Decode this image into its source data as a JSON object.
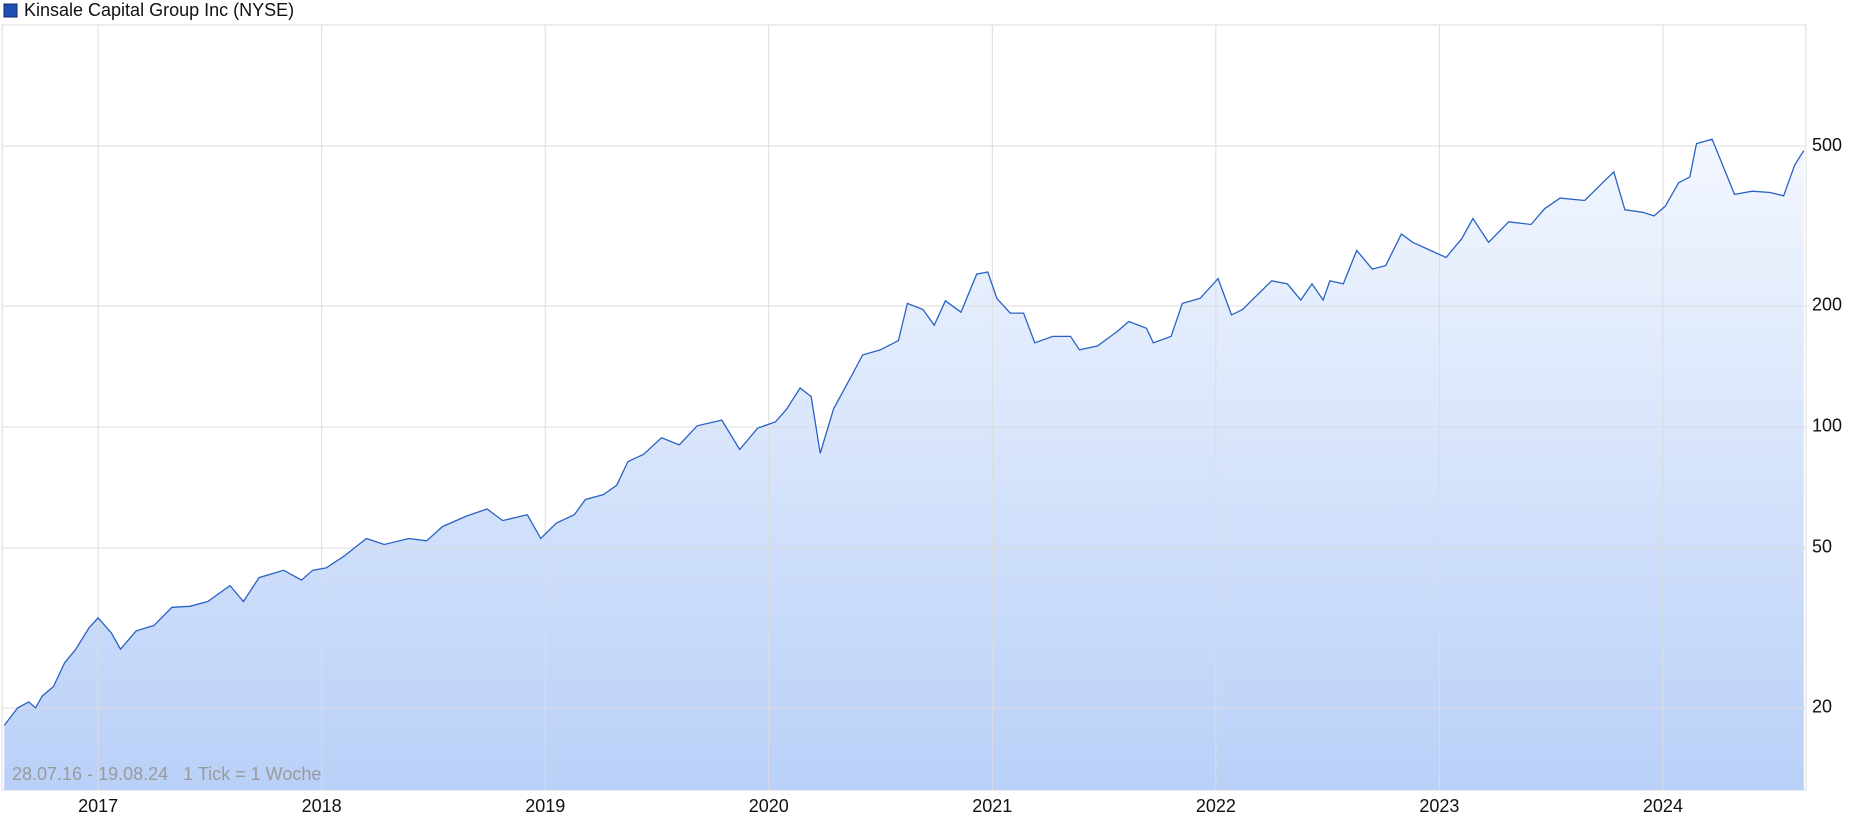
{
  "chart_data": {
    "type": "line",
    "title": "Kinsale Capital Group Inc (NYSE)",
    "note": "28.07.16 - 19.08.24   1 Tick = 1 Woche",
    "log_scale": true,
    "grid": true,
    "xlim": [
      2016.57,
      2024.64
    ],
    "xticks": [
      2017,
      2018,
      2019,
      2020,
      2021,
      2022,
      2023,
      2024
    ],
    "ylim": [
      12.5,
      1000
    ],
    "yticks": [
      20,
      50,
      100,
      200,
      500
    ],
    "x": [
      2016.58,
      2016.64,
      2016.69,
      2016.72,
      2016.75,
      2016.8,
      2016.85,
      2016.9,
      2016.96,
      2017.0,
      2017.06,
      2017.1,
      2017.17,
      2017.25,
      2017.33,
      2017.41,
      2017.49,
      2017.59,
      2017.65,
      2017.72,
      2017.83,
      2017.91,
      2017.96,
      2018.02,
      2018.1,
      2018.2,
      2018.28,
      2018.39,
      2018.47,
      2018.54,
      2018.65,
      2018.74,
      2018.81,
      2018.92,
      2018.98,
      2019.05,
      2019.13,
      2019.18,
      2019.26,
      2019.32,
      2019.37,
      2019.44,
      2019.52,
      2019.6,
      2019.68,
      2019.79,
      2019.87,
      2019.95,
      2020.03,
      2020.08,
      2020.14,
      2020.19,
      2020.23,
      2020.29,
      2020.37,
      2020.42,
      2020.5,
      2020.58,
      2020.62,
      2020.69,
      2020.74,
      2020.79,
      2020.86,
      2020.93,
      2020.98,
      2021.02,
      2021.08,
      2021.14,
      2021.19,
      2021.27,
      2021.35,
      2021.39,
      2021.47,
      2021.56,
      2021.61,
      2021.69,
      2021.72,
      2021.8,
      2021.85,
      2021.93,
      2022.01,
      2022.07,
      2022.12,
      2022.17,
      2022.25,
      2022.32,
      2022.38,
      2022.43,
      2022.48,
      2022.51,
      2022.57,
      2022.63,
      2022.7,
      2022.76,
      2022.83,
      2022.88,
      2022.96,
      2023.03,
      2023.1,
      2023.15,
      2023.22,
      2023.31,
      2023.41,
      2023.47,
      2023.54,
      2023.65,
      2023.73,
      2023.78,
      2023.83,
      2023.91,
      2023.96,
      2024.01,
      2024.07,
      2024.12,
      2024.15,
      2024.22,
      2024.26,
      2024.32,
      2024.4,
      2024.48,
      2024.54,
      2024.59,
      2024.63
    ],
    "series": [
      {
        "name": "Kinsale Capital Group Inc (NYSE)",
        "color": "#2a62c4",
        "values": [
          18.1,
          20,
          20.7,
          20,
          21.4,
          22.6,
          25.9,
          28,
          31.7,
          33.5,
          30.7,
          28,
          31.1,
          32.1,
          35.6,
          35.8,
          36.8,
          40.3,
          36.8,
          42.2,
          44,
          41.6,
          44,
          44.6,
          47.7,
          52.8,
          51,
          52.8,
          52.1,
          56.5,
          60.1,
          62.5,
          58.5,
          60.5,
          52.8,
          57.7,
          60.5,
          66,
          67.9,
          71.6,
          82,
          85.5,
          94,
          90.3,
          100.7,
          104,
          87.9,
          99.3,
          103,
          110.7,
          125,
          119,
          86,
          111,
          134,
          151,
          155.6,
          164,
          203,
          196,
          179,
          206,
          193,
          240,
          243,
          209,
          192,
          192,
          162,
          168,
          168,
          155.6,
          159,
          173,
          183,
          176,
          162,
          168,
          203,
          209,
          234,
          190,
          196,
          209,
          231,
          227,
          207,
          227,
          207,
          231,
          227,
          275,
          247,
          252,
          302,
          288,
          275,
          264,
          294,
          330,
          288,
          324,
          319,
          349,
          371,
          366,
          405,
          431,
          347,
          342,
          335,
          354,
          405,
          419,
          507,
          520,
          458,
          379,
          386,
          383,
          376,
          449,
          487
        ]
      }
    ]
  }
}
